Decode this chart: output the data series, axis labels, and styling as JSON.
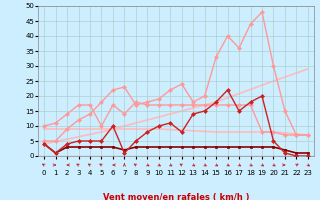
{
  "xlabel": "Vent moyen/en rafales ( km/h )",
  "background_color": "#cceeff",
  "grid_color": "#aacccc",
  "xlim": [
    -0.5,
    23.5
  ],
  "ylim": [
    0,
    50
  ],
  "yticks": [
    0,
    5,
    10,
    15,
    20,
    25,
    30,
    35,
    40,
    45,
    50
  ],
  "xticks": [
    0,
    1,
    2,
    3,
    4,
    5,
    6,
    7,
    8,
    9,
    10,
    11,
    12,
    13,
    14,
    15,
    16,
    17,
    18,
    19,
    20,
    21,
    22,
    23
  ],
  "series": [
    {
      "x": [
        0,
        1,
        2,
        3,
        4,
        5,
        6,
        7,
        8,
        9,
        10,
        11,
        12,
        13,
        14,
        15,
        16,
        17,
        18,
        19,
        20,
        21,
        22,
        23
      ],
      "y": [
        4,
        1,
        3,
        3,
        3,
        3,
        3,
        2,
        3,
        3,
        3,
        3,
        3,
        3,
        3,
        3,
        3,
        3,
        3,
        3,
        3,
        2,
        1,
        1
      ],
      "color": "#880000",
      "lw": 1.2,
      "marker": "s",
      "ms": 2.0,
      "zorder": 4
    },
    {
      "x": [
        0,
        1,
        2,
        3,
        4,
        5,
        6,
        7,
        8,
        9,
        10,
        11,
        12,
        13,
        14,
        15,
        16,
        17,
        18,
        19,
        20,
        21,
        22,
        23
      ],
      "y": [
        4,
        1,
        4,
        5,
        5,
        5,
        10,
        1,
        5,
        8,
        10,
        11,
        8,
        14,
        15,
        18,
        22,
        15,
        18,
        20,
        5,
        1,
        0,
        0
      ],
      "color": "#cc2222",
      "lw": 1.0,
      "marker": "D",
      "ms": 2.0,
      "zorder": 5
    },
    {
      "x": [
        0,
        5,
        10,
        15,
        20,
        23
      ],
      "y": [
        4,
        8,
        13,
        18,
        25,
        29
      ],
      "color": "#ffbbbb",
      "lw": 1.2,
      "marker": null,
      "ms": 0,
      "zorder": 1
    },
    {
      "x": [
        0,
        5,
        10,
        15,
        20,
        23
      ],
      "y": [
        9,
        9,
        9,
        8,
        8,
        7
      ],
      "color": "#ffbbbb",
      "lw": 1.2,
      "marker": null,
      "ms": 0,
      "zorder": 1
    },
    {
      "x": [
        0,
        1,
        2,
        3,
        4,
        5,
        6,
        7,
        8,
        9,
        10,
        11,
        12,
        13,
        14,
        15,
        16,
        17,
        18,
        19,
        20,
        21,
        22,
        23
      ],
      "y": [
        5,
        5,
        9,
        12,
        14,
        18,
        22,
        23,
        17,
        18,
        19,
        22,
        24,
        18,
        20,
        33,
        40,
        36,
        44,
        48,
        30,
        15,
        7,
        7
      ],
      "color": "#ff9999",
      "lw": 1.0,
      "marker": "D",
      "ms": 2.0,
      "zorder": 2
    },
    {
      "x": [
        0,
        1,
        2,
        3,
        4,
        5,
        6,
        7,
        8,
        9,
        10,
        11,
        12,
        13,
        14,
        15,
        16,
        17,
        18,
        19,
        20,
        21,
        22,
        23
      ],
      "y": [
        10,
        11,
        14,
        17,
        17,
        10,
        17,
        14,
        18,
        17,
        17,
        17,
        17,
        17,
        17,
        17,
        17,
        17,
        17,
        8,
        8,
        7,
        7,
        7
      ],
      "color": "#ff9999",
      "lw": 1.0,
      "marker": "D",
      "ms": 2.0,
      "zorder": 2
    }
  ],
  "wind_arrows_x": [
    0,
    1,
    2,
    3,
    4,
    5,
    6,
    7,
    8,
    9,
    10,
    11,
    12,
    13,
    14,
    15,
    16,
    17,
    18,
    19,
    20,
    21,
    22,
    23
  ],
  "wind_dirs": [
    225,
    90,
    270,
    225,
    225,
    225,
    270,
    180,
    225,
    45,
    45,
    45,
    225,
    45,
    45,
    45,
    45,
    45,
    45,
    45,
    45,
    90,
    135,
    45
  ]
}
